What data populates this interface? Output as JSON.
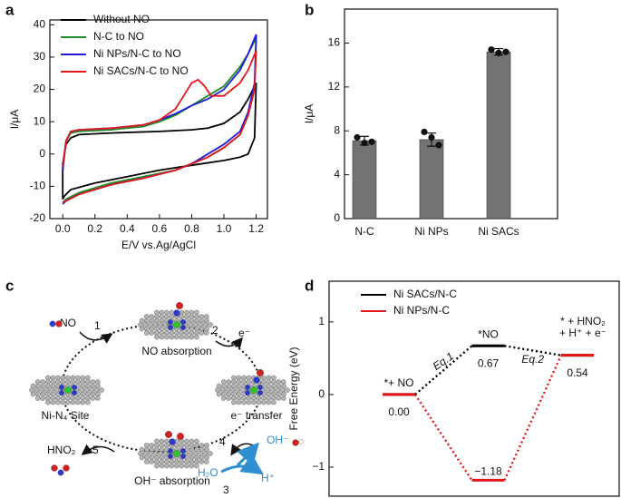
{
  "chart_data": [
    {
      "type": "line",
      "panel": "a",
      "x_label": "E/V vs.Ag/AgCl",
      "y_label": "I/μA",
      "xlim": [
        -0.08,
        1.27
      ],
      "ylim": [
        -20,
        41.5
      ],
      "xticks": [
        {
          "value": 0,
          "label": "0.0"
        },
        0.2,
        0.4,
        0.6,
        0.8,
        {
          "value": 1,
          "label": "1.0"
        },
        1.2
      ],
      "yticks": [
        -20,
        -10,
        0,
        10,
        20,
        30,
        40
      ],
      "legend": "upper left",
      "series": [
        {
          "name": "Without NO",
          "color": "#000000",
          "x": [
            0,
            0.02,
            0.05,
            0.1,
            0.3,
            0.6,
            0.8,
            0.9,
            1.0,
            1.1,
            1.15,
            1.2,
            1.19,
            1.15,
            1.1,
            1.0,
            0.8,
            0.6,
            0.4,
            0.2,
            0.05,
            0.01,
            0,
            0
          ],
          "values": [
            -3,
            3,
            5,
            6,
            6.5,
            7,
            7.5,
            8,
            9.5,
            13,
            17,
            22,
            5,
            0,
            -1,
            -2,
            -3.5,
            -5,
            -7,
            -9,
            -11,
            -13,
            -14,
            -3
          ]
        },
        {
          "name": "N-C to NO",
          "color": "#1f8a2a",
          "x": [
            0,
            0.02,
            0.05,
            0.1,
            0.3,
            0.5,
            0.6,
            0.7,
            0.8,
            0.9,
            1.0,
            1.1,
            1.15,
            1.2,
            1.19,
            1.15,
            1.1,
            1.0,
            0.9,
            0.8,
            0.7,
            0.5,
            0.3,
            0.1,
            0.02,
            0
          ],
          "values": [
            -5,
            4,
            6.5,
            7,
            7.5,
            8.5,
            10,
            12,
            15,
            18,
            21,
            27,
            31,
            36,
            20,
            12,
            6,
            2,
            -1,
            -3,
            -5,
            -7,
            -9,
            -12,
            -14,
            -15
          ]
        },
        {
          "name": "Ni NPs/N-C to NO",
          "color": "#1c1cd6",
          "x": [
            0,
            0.02,
            0.05,
            0.1,
            0.3,
            0.5,
            0.6,
            0.7,
            0.8,
            0.9,
            1.0,
            1.1,
            1.15,
            1.2,
            1.19,
            1.15,
            1.1,
            1.0,
            0.9,
            0.8,
            0.7,
            0.5,
            0.3,
            0.1,
            0.02,
            0
          ],
          "values": [
            -5,
            4,
            7,
            7.5,
            8,
            9,
            10.5,
            12.5,
            15,
            17,
            20,
            26,
            31,
            37,
            22,
            13,
            7,
            3,
            0,
            -3,
            -5,
            -7.5,
            -9.5,
            -12.5,
            -14.5,
            -15.5
          ]
        },
        {
          "name": "Ni SACs/N-C to NO",
          "color": "#e3161b",
          "x": [
            0,
            0.02,
            0.05,
            0.1,
            0.3,
            0.5,
            0.6,
            0.7,
            0.75,
            0.8,
            0.84,
            0.88,
            0.92,
            1.0,
            1.1,
            1.15,
            1.2,
            1.19,
            1.15,
            1.1,
            1.0,
            0.9,
            0.8,
            0.7,
            0.5,
            0.3,
            0.1,
            0.02,
            0
          ],
          "values": [
            -4,
            4,
            7,
            7.5,
            8,
            9,
            10.5,
            14,
            18,
            22,
            23,
            21,
            18,
            18,
            22,
            26,
            32,
            20,
            12,
            6,
            2,
            -1,
            -3,
            -5,
            -7.5,
            -9.5,
            -12.5,
            -14.5,
            -15
          ]
        }
      ]
    },
    {
      "type": "bar",
      "panel": "b",
      "y_label": "I/μA",
      "categories": [
        "N-C",
        "Ni NPs",
        "Ni SACs"
      ],
      "values": [
        7.1,
        7.2,
        15.2
      ],
      "errors": [
        0.4,
        0.6,
        0.3
      ],
      "points": [
        [
          7.4,
          6.9,
          7.0
        ],
        [
          7.9,
          7.4,
          6.7
        ],
        [
          15.4,
          15.1,
          15.2
        ]
      ],
      "color": "#737373",
      "ylim": [
        0,
        19.1
      ],
      "yticks": [
        0,
        4,
        8,
        12,
        16
      ]
    },
    {
      "type": "energy",
      "panel": "d",
      "y_label": "Free Energy (eV)",
      "categories": [
        "*+ NO",
        "*NO",
        [
          "* + HNO₂",
          "+ H⁺ + e⁻"
        ]
      ],
      "annotations": [
        "Eq.1",
        "Eq.2"
      ],
      "ylim": [
        -1.4,
        1.56
      ],
      "yticks": [
        {
          "value": -1,
          "label": "−1"
        },
        0,
        1
      ],
      "legend": "upper left",
      "series": [
        {
          "name": "Ni SACs/N-C",
          "color": "#000000",
          "values": [
            0.0,
            0.67,
            0.54
          ],
          "value_labels": [
            "0.00",
            "0.67",
            "0.54"
          ]
        },
        {
          "name": "Ni NPs/N-C",
          "color": "#e3161b",
          "values": [
            0.0,
            -1.18,
            0.54
          ],
          "value_labels": [
            null,
            "−1.18",
            null
          ]
        }
      ]
    }
  ],
  "diagram": {
    "panel": "c",
    "labels": [
      "NO",
      "1",
      "NO absorption",
      "2",
      "e⁻",
      "e⁻ transfer",
      "Ni-N₄ Site",
      "4",
      "OH⁻",
      "H₂O",
      "3",
      "H⁺",
      "OH⁻ absorption",
      "5",
      "HNO₂"
    ]
  }
}
